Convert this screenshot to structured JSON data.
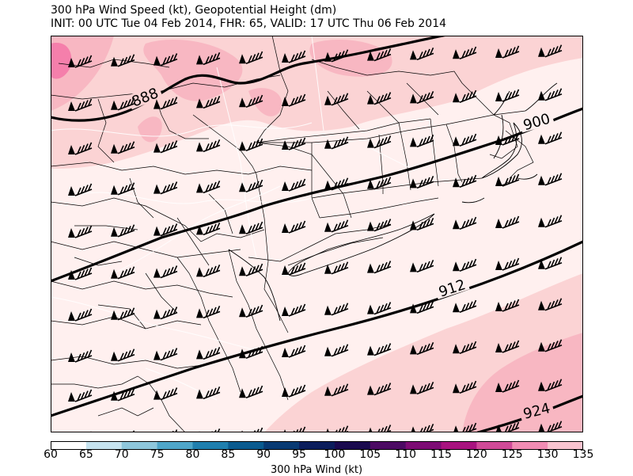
{
  "title": {
    "line1": "300 hPa Wind Speed (kt), Geopotential Height (dm)",
    "line2": "INIT: 00 UTC Tue 04 Feb 2014, FHR: 65, VALID: 17 UTC Thu 06 Feb 2014"
  },
  "colorbar": {
    "label": "300 hPa Wind (kt)",
    "ticks": [
      "60",
      "65",
      "70",
      "75",
      "80",
      "85",
      "90",
      "95",
      "100",
      "105",
      "110",
      "115",
      "120",
      "125",
      "130",
      "135"
    ],
    "colors": [
      "#ffffff",
      "#c6e3ef",
      "#8ec7dc",
      "#4fa6c9",
      "#1f7fae",
      "#0a5b8f",
      "#083a73",
      "#0b1d5c",
      "#1a0a4f",
      "#4c0a63",
      "#7d0b74",
      "#a8127f",
      "#d04a98",
      "#f28cb4",
      "#f9c4d0",
      "#ffffff"
    ]
  },
  "contours": {
    "labels": [
      "888",
      "900",
      "912",
      "924"
    ],
    "line_color": "#000000"
  },
  "map": {
    "fill_colors": {
      "base": "#fff0ef",
      "band_120": "#fbd3d4",
      "band_125": "#f8b7c2",
      "band_130": "#f57fab"
    },
    "boundary_color": "#000000",
    "road_color": "#ffffff"
  }
}
